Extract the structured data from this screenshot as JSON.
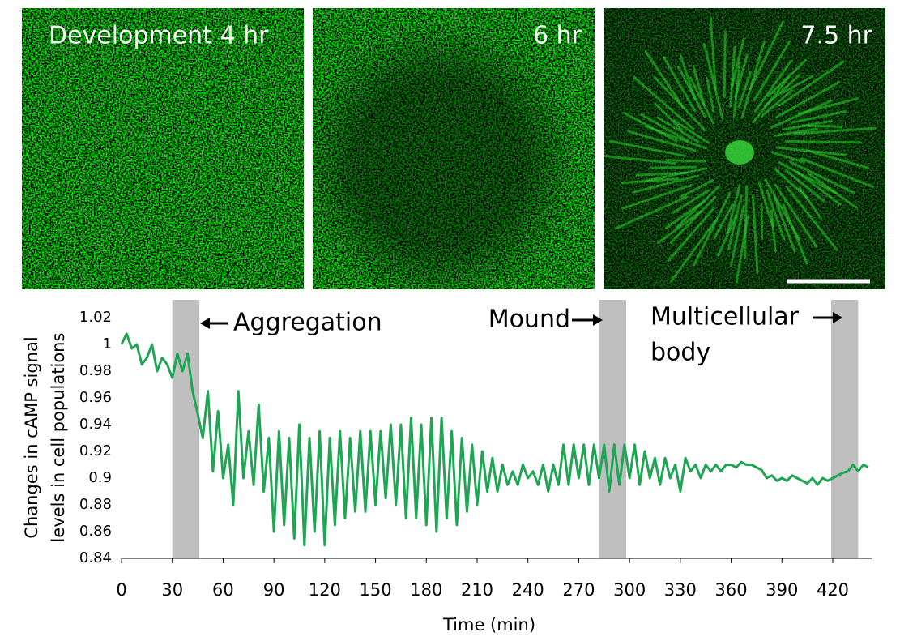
{
  "panels": [
    {
      "label": "Development 4 hr"
    },
    {
      "label": "6 hr"
    },
    {
      "label": "7.5 hr"
    }
  ],
  "chart_data": {
    "type": "line",
    "ylabel_lines": [
      "Changes in cAMP signal",
      "levels in cell populations"
    ],
    "xlabel": "Time (min)",
    "xlim": [
      0,
      443
    ],
    "xticks": [
      0,
      30,
      60,
      90,
      120,
      150,
      180,
      210,
      240,
      270,
      300,
      330,
      360,
      390,
      420
    ],
    "ylim": [
      0.84,
      1.02
    ],
    "yticks": [
      0.84,
      0.86,
      0.88,
      0.9,
      0.92,
      0.94,
      0.96,
      0.98,
      1,
      1.02
    ],
    "shaded_regions": [
      [
        30,
        46
      ],
      [
        282,
        298
      ],
      [
        419,
        435
      ]
    ],
    "shade_color": "#bfbfbf",
    "annotations": [
      {
        "lines": [
          "Aggregation"
        ]
      },
      {
        "lines": [
          "Mound"
        ]
      },
      {
        "lines": [
          "Multicellular",
          "body"
        ]
      }
    ],
    "x": [
      0,
      3,
      6,
      9,
      12,
      15,
      18,
      21,
      24,
      27,
      30,
      33,
      36,
      39,
      42,
      45,
      48,
      51,
      54,
      57,
      60,
      63,
      66,
      69,
      72,
      75,
      78,
      81,
      84,
      87,
      90,
      93,
      96,
      99,
      102,
      105,
      108,
      111,
      114,
      117,
      120,
      123,
      126,
      129,
      132,
      135,
      138,
      141,
      144,
      147,
      150,
      153,
      156,
      159,
      162,
      165,
      168,
      171,
      174,
      177,
      180,
      183,
      186,
      189,
      192,
      195,
      198,
      201,
      204,
      207,
      210,
      213,
      216,
      219,
      222,
      225,
      228,
      231,
      234,
      237,
      240,
      243,
      246,
      249,
      252,
      255,
      258,
      261,
      264,
      267,
      270,
      273,
      276,
      279,
      282,
      285,
      288,
      291,
      294,
      297,
      300,
      303,
      306,
      309,
      312,
      315,
      318,
      321,
      324,
      327,
      330,
      333,
      336,
      339,
      342,
      345,
      348,
      351,
      354,
      357,
      360,
      363,
      366,
      369,
      372,
      375,
      378,
      381,
      384,
      387,
      390,
      393,
      396,
      399,
      402,
      405,
      408,
      411,
      414,
      417,
      420,
      423,
      426,
      429,
      432,
      435,
      438,
      441
    ],
    "series": [
      {
        "color": "#1fa655",
        "values": [
          1.0,
          1.008,
          0.997,
          1.0,
          0.985,
          0.99,
          1.0,
          0.98,
          0.99,
          0.985,
          0.975,
          0.993,
          0.98,
          0.993,
          0.965,
          0.948,
          0.93,
          0.965,
          0.905,
          0.95,
          0.9,
          0.925,
          0.88,
          0.965,
          0.9,
          0.935,
          0.895,
          0.955,
          0.89,
          0.93,
          0.86,
          0.935,
          0.865,
          0.93,
          0.855,
          0.94,
          0.85,
          0.93,
          0.86,
          0.935,
          0.85,
          0.93,
          0.865,
          0.935,
          0.87,
          0.93,
          0.875,
          0.935,
          0.875,
          0.935,
          0.88,
          0.935,
          0.885,
          0.94,
          0.88,
          0.94,
          0.87,
          0.945,
          0.87,
          0.94,
          0.865,
          0.945,
          0.86,
          0.945,
          0.87,
          0.935,
          0.865,
          0.93,
          0.875,
          0.925,
          0.88,
          0.92,
          0.89,
          0.915,
          0.89,
          0.91,
          0.895,
          0.905,
          0.895,
          0.91,
          0.9,
          0.905,
          0.895,
          0.91,
          0.89,
          0.91,
          0.895,
          0.925,
          0.895,
          0.925,
          0.9,
          0.925,
          0.895,
          0.925,
          0.9,
          0.925,
          0.89,
          0.925,
          0.895,
          0.925,
          0.9,
          0.925,
          0.895,
          0.92,
          0.9,
          0.915,
          0.895,
          0.915,
          0.9,
          0.91,
          0.89,
          0.915,
          0.905,
          0.91,
          0.9,
          0.91,
          0.905,
          0.91,
          0.905,
          0.91,
          0.91,
          0.908,
          0.912,
          0.91,
          0.91,
          0.908,
          0.906,
          0.9,
          0.902,
          0.898,
          0.9,
          0.898,
          0.902,
          0.9,
          0.898,
          0.896,
          0.9,
          0.895,
          0.9,
          0.898,
          0.9,
          0.902,
          0.904,
          0.905,
          0.91,
          0.905,
          0.91,
          0.908
        ]
      }
    ]
  }
}
